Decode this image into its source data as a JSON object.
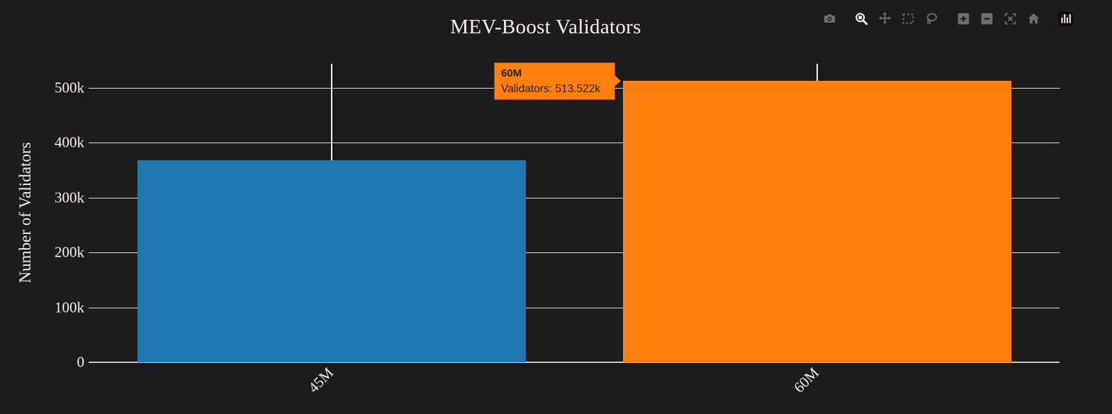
{
  "page": {
    "background": "#1c1c1c"
  },
  "header": {
    "title": "MEV-Boost Validators"
  },
  "modebar": {
    "colors": {
      "inactive": "#6e6e6e",
      "active": "#f0f0f0"
    },
    "items": [
      {
        "icon": "camera-icon",
        "name": "download-plot-button",
        "active": false,
        "group_start": false
      },
      {
        "icon": "zoom-icon",
        "name": "zoom-button",
        "active": true,
        "group_start": true
      },
      {
        "icon": "pan-icon",
        "name": "pan-button",
        "active": false,
        "group_start": false
      },
      {
        "icon": "box-select-icon",
        "name": "box-select-button",
        "active": false,
        "group_start": false
      },
      {
        "icon": "lasso-select-icon",
        "name": "lasso-select-button",
        "active": false,
        "group_start": false
      },
      {
        "icon": "zoom-in-icon",
        "name": "zoom-in-button",
        "active": false,
        "group_start": true
      },
      {
        "icon": "zoom-out-icon",
        "name": "zoom-out-button",
        "active": false,
        "group_start": false
      },
      {
        "icon": "autoscale-icon",
        "name": "autoscale-button",
        "active": false,
        "group_start": false
      },
      {
        "icon": "home-icon",
        "name": "reset-axes-button",
        "active": false,
        "group_start": false
      },
      {
        "icon": "plotly-logo-icon",
        "name": "plotly-logo-link",
        "active": false,
        "group_start": true
      }
    ]
  },
  "chart_data": {
    "type": "bar",
    "title": "MEV-Boost Validators",
    "xlabel": "",
    "ylabel": "Number of Validators",
    "categories": [
      "45M",
      "60M"
    ],
    "series": [
      {
        "name": "Validators",
        "values": [
          368300,
          513522
        ]
      }
    ],
    "bar_colors": [
      "#1f77b4",
      "#ff7f0e"
    ],
    "error_high_values": [
      544000,
      544000
    ],
    "yticks": {
      "values": [
        0,
        100000,
        200000,
        300000,
        400000,
        500000
      ],
      "labels": [
        "0",
        "100k",
        "200k",
        "300k",
        "400k",
        "500k"
      ]
    },
    "ylim": [
      0,
      550000
    ],
    "grid": true,
    "legend_position": "none",
    "x_tick_angle": -45
  },
  "tooltip": {
    "title": "60M",
    "label": "Validators: 513.522k",
    "background": "#ff7f0e",
    "text_color": "#1f1f1f"
  },
  "colors": {
    "grid": "#e0e0e0",
    "zeroline": "#c9c9c9",
    "axis_text": "#f2efe6",
    "bar_blue": "#1f77b4",
    "bar_orange": "#ff7f0e",
    "error_bar": "#ededed"
  }
}
